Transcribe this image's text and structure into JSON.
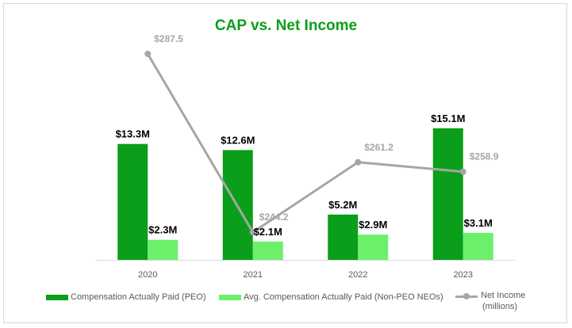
{
  "chart_data": {
    "type": "bar+line",
    "title": "CAP vs. Net Income",
    "categories": [
      "2020",
      "2021",
      "2022",
      "2023"
    ],
    "series": [
      {
        "name": "Compensation Actually Paid (PEO)",
        "type": "bar",
        "color": "#0a9e1a",
        "values": [
          13.3,
          12.6,
          5.2,
          15.1
        ],
        "labels": [
          "$13.3M",
          "$12.6M",
          "$5.2M",
          "$15.1M"
        ]
      },
      {
        "name": "Avg. Compensation Actually Paid (Non-PEO NEOs)",
        "type": "bar",
        "color": "#6cf06c",
        "values": [
          2.3,
          2.1,
          2.9,
          3.1
        ],
        "labels": [
          "$2.3M",
          "$2.1M",
          "$2.9M",
          "$3.1M"
        ]
      },
      {
        "name": "Net Income (millions)",
        "type": "line",
        "color": "#a6a6a6",
        "values": [
          287.5,
          244.2,
          261.2,
          258.9
        ],
        "labels": [
          "$287.5",
          "$244.2",
          "$261.2",
          "$258.9"
        ]
      }
    ],
    "bar_axis_range": [
      0,
      26
    ],
    "line_axis_range": [
      237.5,
      292.5
    ],
    "legend_position": "bottom",
    "gridlines": false
  },
  "legend": {
    "peo": "Compensation Actually Paid (PEO)",
    "neo": "Avg. Compensation Actually Paid (Non-PEO NEOs)",
    "net_line1": "Net Income",
    "net_line2": "(millions)"
  }
}
